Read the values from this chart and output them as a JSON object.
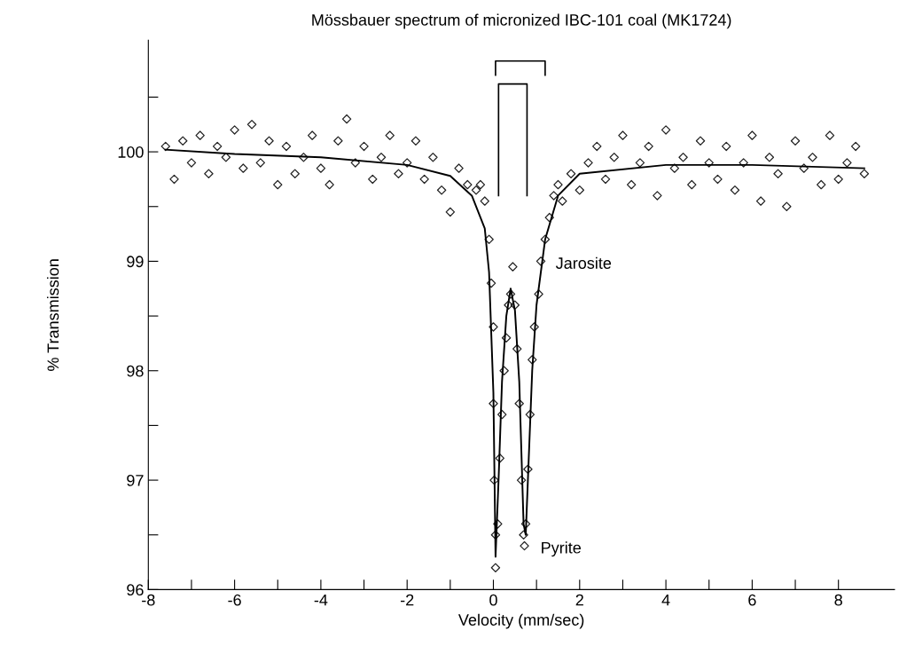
{
  "chart_data": {
    "type": "scatter",
    "title": "Mössbauer spectrum of micronized IBC-101 coal (MK1724)",
    "xlabel": "Velocity (mm/sec)",
    "ylabel": "% Transmission",
    "xlim": [
      -8,
      9.3
    ],
    "ylim": [
      96,
      101.02
    ],
    "xticks": [
      -8,
      {
        "value": -7,
        "label": null
      },
      -6,
      {
        "value": -5,
        "label": null
      },
      -4,
      {
        "value": -3,
        "label": null
      },
      -2,
      {
        "value": -1,
        "label": null
      },
      0,
      {
        "value": 1,
        "label": null
      },
      2,
      {
        "value": 3,
        "label": null
      },
      4,
      {
        "value": 5,
        "label": null
      },
      6,
      {
        "value": 7,
        "label": null
      },
      8
    ],
    "yticks": [
      96,
      {
        "value": 96.5,
        "label": null
      },
      97,
      {
        "value": 97.5,
        "label": null
      },
      98,
      {
        "value": 98.5,
        "label": null
      },
      99,
      {
        "value": 99.5,
        "label": null
      },
      100,
      {
        "value": 100.5,
        "label": null
      }
    ],
    "grid": false,
    "legend": false,
    "series": [
      {
        "marker": "diamond",
        "color": "#222222",
        "x": [
          -7.6,
          -7.4,
          -7.2,
          -7.0,
          -6.8,
          -6.6,
          -6.4,
          -6.2,
          -6.0,
          -5.8,
          -5.6,
          -5.4,
          -5.2,
          -5.0,
          -4.8,
          -4.6,
          -4.4,
          -4.2,
          -4.0,
          -3.8,
          -3.6,
          -3.4,
          -3.2,
          -3.0,
          -2.8,
          -2.6,
          -2.4,
          -2.2,
          -2.0,
          -1.8,
          -1.6,
          -1.4,
          -1.2,
          -1.0,
          -0.8,
          -0.6,
          -0.4,
          -0.3,
          -0.2,
          -0.1,
          -0.05,
          0,
          0,
          0.02,
          0.05,
          0.05,
          0.1,
          0.15,
          0.2,
          0.25,
          0.3,
          0.35,
          0.4,
          0.45,
          0.5,
          0.55,
          0.6,
          0.65,
          0.7,
          0.72,
          0.75,
          0.8,
          0.85,
          0.9,
          0.95,
          1.05,
          1.1,
          1.2,
          1.3,
          1.4,
          1.5,
          1.6,
          1.8,
          2.0,
          2.2,
          2.4,
          2.6,
          2.8,
          3.0,
          3.2,
          3.4,
          3.6,
          3.8,
          4.0,
          4.2,
          4.4,
          4.6,
          4.8,
          5.0,
          5.2,
          5.4,
          5.6,
          5.8,
          6.0,
          6.2,
          6.4,
          6.6,
          6.8,
          7.0,
          7.2,
          7.4,
          7.6,
          7.8,
          8.0,
          8.2,
          8.4,
          8.6
        ],
        "values": [
          100.05,
          99.75,
          100.1,
          99.9,
          100.15,
          99.8,
          100.05,
          99.95,
          100.2,
          99.85,
          100.25,
          99.9,
          100.1,
          99.7,
          100.05,
          99.8,
          99.95,
          100.15,
          99.85,
          99.7,
          100.1,
          100.3,
          99.9,
          100.05,
          99.75,
          99.95,
          100.15,
          99.8,
          99.9,
          100.1,
          99.75,
          99.95,
          99.65,
          99.45,
          99.85,
          99.7,
          99.65,
          99.7,
          99.55,
          99.2,
          98.8,
          98.4,
          97.7,
          97.0,
          96.5,
          96.2,
          96.6,
          97.2,
          97.6,
          98.0,
          98.3,
          98.6,
          98.7,
          98.95,
          98.6,
          98.2,
          97.7,
          97.0,
          96.5,
          96.4,
          96.6,
          97.1,
          97.6,
          98.1,
          98.4,
          98.7,
          99.0,
          99.2,
          99.4,
          99.6,
          99.7,
          99.55,
          99.8,
          99.65,
          99.9,
          100.05,
          99.75,
          99.95,
          100.15,
          99.7,
          99.9,
          100.05,
          99.6,
          100.2,
          99.85,
          99.95,
          99.7,
          100.1,
          99.9,
          99.75,
          100.05,
          99.65,
          99.9,
          100.15,
          99.55,
          99.95,
          99.8,
          99.5,
          100.1,
          99.85,
          99.95,
          99.7,
          100.15,
          99.75,
          99.9,
          100.05,
          99.8
        ]
      },
      {
        "type": "line",
        "color": "#000000",
        "marker": "none",
        "line_style": "solid",
        "x": [
          -7.6,
          -6,
          -4,
          -2,
          -1,
          -0.5,
          -0.2,
          -0.1,
          0,
          0.05,
          0.12,
          0.2,
          0.3,
          0.4,
          0.5,
          0.6,
          0.7,
          0.75,
          0.82,
          0.9,
          1.0,
          1.2,
          1.5,
          2,
          4,
          6,
          8.6
        ],
        "values": [
          100.02,
          99.98,
          99.95,
          99.88,
          99.78,
          99.6,
          99.3,
          98.9,
          97.8,
          96.3,
          97.0,
          97.9,
          98.5,
          98.75,
          98.55,
          97.9,
          96.6,
          96.5,
          97.2,
          98.0,
          98.6,
          99.2,
          99.6,
          99.8,
          99.88,
          99.88,
          99.85
        ]
      }
    ],
    "annotations": [
      {
        "text": "Pyrite",
        "x": 0.75,
        "y": 96.4
      },
      {
        "text": "Jarosite",
        "x": 1.1,
        "y": 99.0
      }
    ]
  }
}
